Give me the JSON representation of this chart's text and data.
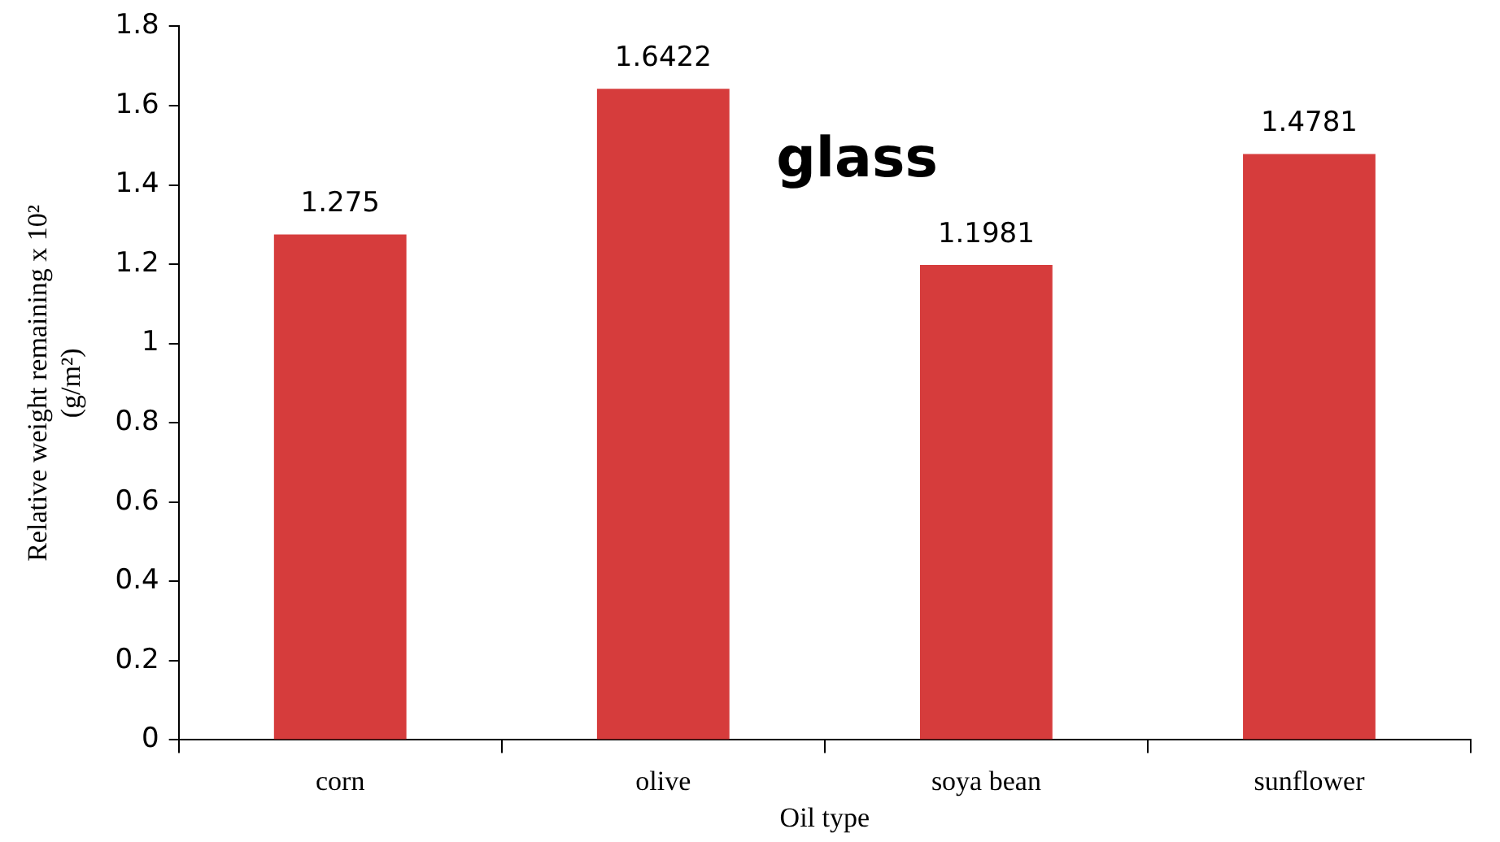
{
  "chart_data": {
    "type": "bar",
    "xlabel": "Oil type",
    "ylabel": "Relative weight remaining x 10² (g/m²)",
    "annotations": [
      "glass"
    ],
    "categories": [
      "corn",
      "olive",
      "soya bean",
      "sunflower"
    ],
    "values": [
      1.275,
      1.6422,
      1.1981,
      1.4781
    ],
    "color": "#d63c3c",
    "ylim": [
      0,
      1.8
    ],
    "yticks": [
      0,
      0.2,
      0.4,
      0.6,
      0.8,
      1,
      1.2,
      1.4,
      1.6,
      1.8
    ],
    "grid": false,
    "legend": false,
    "data_labels": true
  }
}
